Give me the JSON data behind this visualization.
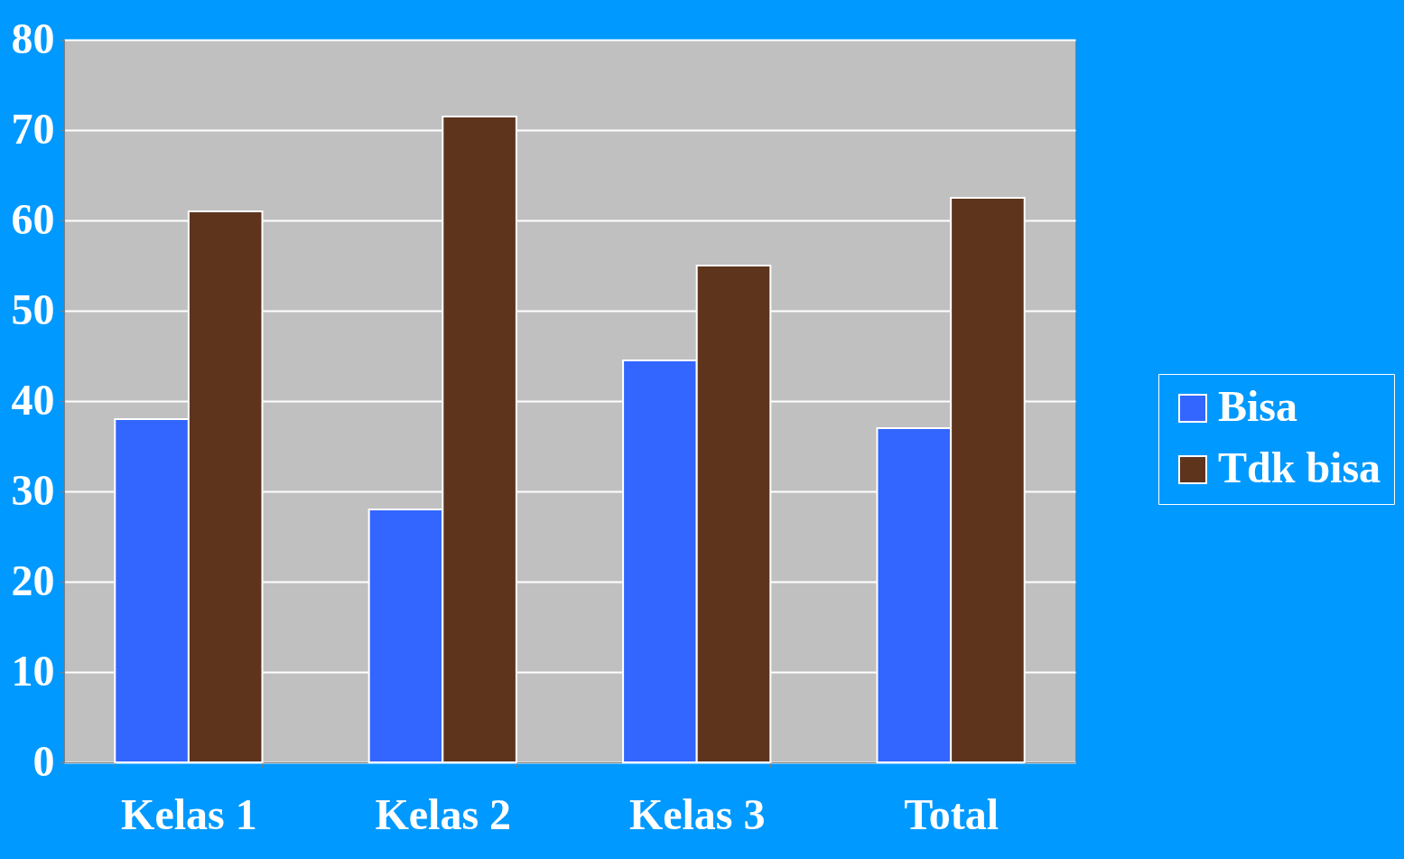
{
  "chart_data": {
    "type": "bar",
    "categories": [
      "Kelas 1",
      "Kelas 2",
      "Kelas 3",
      "Total"
    ],
    "series": [
      {
        "name": "Bisa",
        "color": "#3366ff",
        "values": [
          38,
          28,
          44.5,
          37
        ]
      },
      {
        "name": "Tdk bisa",
        "color": "#5e341d",
        "values": [
          61,
          71.5,
          55,
          62.5
        ]
      }
    ],
    "ylim": [
      0,
      80
    ],
    "yticks": [
      0,
      10,
      20,
      30,
      40,
      50,
      60,
      70,
      80
    ],
    "grid": "y",
    "legend": "right"
  }
}
